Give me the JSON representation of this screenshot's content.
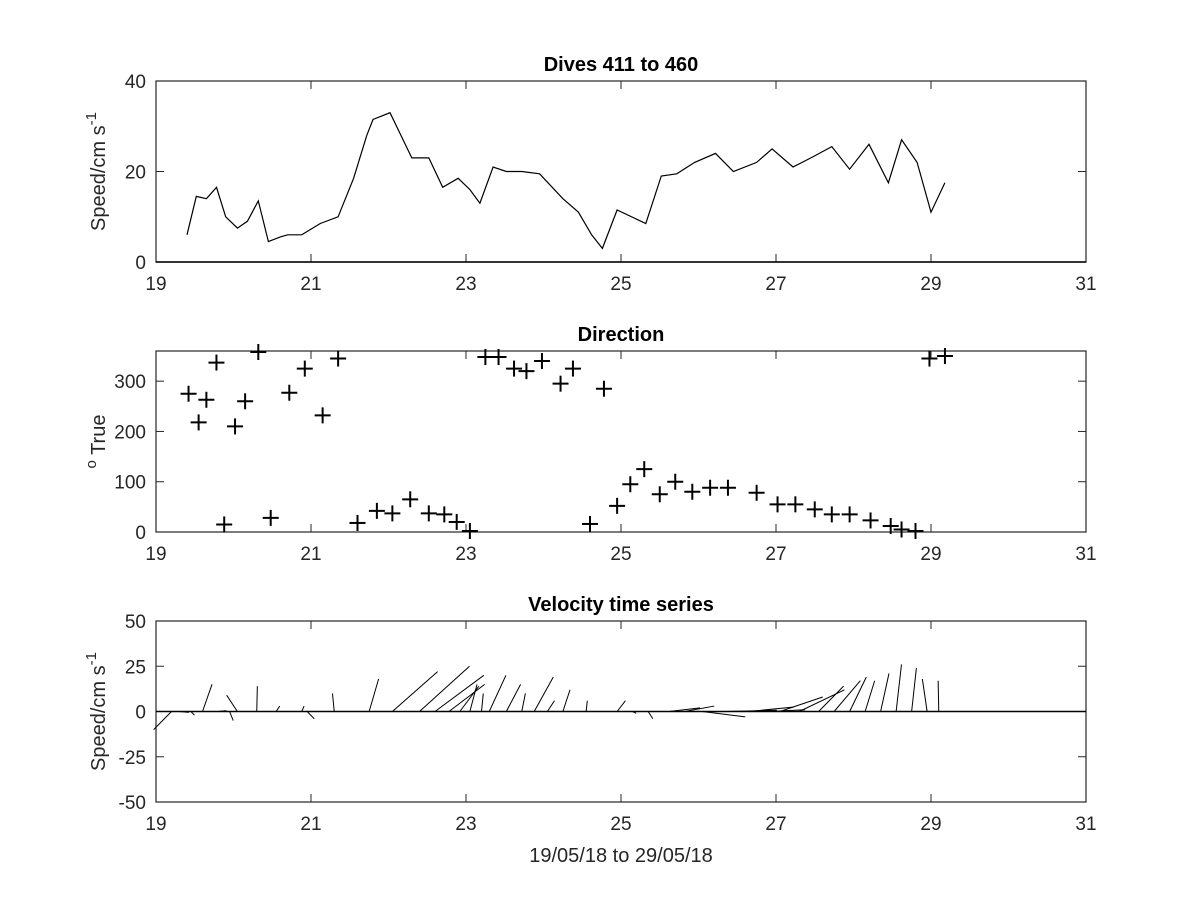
{
  "chart_data": [
    {
      "type": "line",
      "title": "Dives 411 to 460",
      "xlabel": "",
      "ylabel": "Speed/cm s",
      "ylabel_superscript": "-1",
      "xlim": [
        19,
        31
      ],
      "ylim": [
        0,
        40
      ],
      "xticks": [
        19,
        21,
        23,
        25,
        27,
        29,
        31
      ],
      "yticks": [
        0,
        20,
        40
      ],
      "grid": false,
      "series": [
        {
          "color": "#000000",
          "points": [
            [
              19.4,
              6
            ],
            [
              19.52,
              14.5
            ],
            [
              19.65,
              14
            ],
            [
              19.78,
              16.5
            ],
            [
              19.9,
              10
            ],
            [
              20.05,
              7.5
            ],
            [
              20.18,
              9
            ],
            [
              20.32,
              13.5
            ],
            [
              20.45,
              4.5
            ],
            [
              20.6,
              5.5
            ],
            [
              20.7,
              6
            ],
            [
              20.88,
              6
            ],
            [
              21.12,
              8.5
            ],
            [
              21.35,
              10
            ],
            [
              21.55,
              18.5
            ],
            [
              21.72,
              28
            ],
            [
              21.8,
              31.5
            ],
            [
              22.02,
              33
            ],
            [
              22.3,
              23
            ],
            [
              22.52,
              23
            ],
            [
              22.7,
              16.5
            ],
            [
              22.9,
              18.5
            ],
            [
              23.05,
              16
            ],
            [
              23.18,
              13
            ],
            [
              23.35,
              21
            ],
            [
              23.52,
              20
            ],
            [
              23.72,
              20
            ],
            [
              23.95,
              19.5
            ],
            [
              24.25,
              14
            ],
            [
              24.45,
              11
            ],
            [
              24.62,
              6
            ],
            [
              24.76,
              3
            ],
            [
              24.95,
              11.5
            ],
            [
              25.32,
              8.5
            ],
            [
              25.52,
              19
            ],
            [
              25.72,
              19.5
            ],
            [
              25.95,
              22
            ],
            [
              26.22,
              24
            ],
            [
              26.45,
              20
            ],
            [
              26.75,
              22
            ],
            [
              26.95,
              25
            ],
            [
              27.22,
              21
            ],
            [
              27.45,
              23
            ],
            [
              27.72,
              25.5
            ],
            [
              27.95,
              20.5
            ],
            [
              28.2,
              26
            ],
            [
              28.45,
              17.5
            ],
            [
              28.62,
              27
            ],
            [
              28.82,
              22
            ],
            [
              29.0,
              11
            ],
            [
              29.18,
              17.5
            ]
          ]
        }
      ]
    },
    {
      "type": "scatter",
      "title": "Direction",
      "xlabel": "",
      "ylabel": "True",
      "ylabel_prefix": "o",
      "xlim": [
        19,
        31
      ],
      "ylim": [
        0,
        360
      ],
      "xticks": [
        19,
        21,
        23,
        25,
        27,
        29,
        31
      ],
      "yticks": [
        0,
        100,
        200,
        300
      ],
      "grid": false,
      "marker": "+",
      "points": [
        [
          19.42,
          275
        ],
        [
          19.55,
          218
        ],
        [
          19.65,
          263
        ],
        [
          19.78,
          337
        ],
        [
          19.88,
          15
        ],
        [
          20.02,
          210
        ],
        [
          20.15,
          260
        ],
        [
          20.32,
          358
        ],
        [
          20.48,
          28
        ],
        [
          20.72,
          277
        ],
        [
          20.92,
          325
        ],
        [
          21.15,
          232
        ],
        [
          21.35,
          345
        ],
        [
          21.6,
          18
        ],
        [
          21.85,
          42
        ],
        [
          22.05,
          37
        ],
        [
          22.28,
          65
        ],
        [
          22.52,
          37
        ],
        [
          22.72,
          35
        ],
        [
          22.88,
          20
        ],
        [
          23.05,
          2
        ],
        [
          23.25,
          348
        ],
        [
          23.42,
          348
        ],
        [
          23.62,
          325
        ],
        [
          23.78,
          320
        ],
        [
          23.98,
          340
        ],
        [
          24.22,
          295
        ],
        [
          24.38,
          325
        ],
        [
          24.6,
          16
        ],
        [
          24.78,
          285
        ],
        [
          24.95,
          52
        ],
        [
          25.12,
          95
        ],
        [
          25.3,
          125
        ],
        [
          25.5,
          75
        ],
        [
          25.7,
          100
        ],
        [
          25.92,
          80
        ],
        [
          26.15,
          88
        ],
        [
          26.38,
          88
        ],
        [
          26.75,
          78
        ],
        [
          27.02,
          55
        ],
        [
          27.25,
          55
        ],
        [
          27.5,
          45
        ],
        [
          27.72,
          35
        ],
        [
          27.95,
          35
        ],
        [
          28.22,
          23
        ],
        [
          28.48,
          12
        ],
        [
          28.62,
          5
        ],
        [
          28.8,
          2
        ],
        [
          28.98,
          345
        ],
        [
          29.18,
          350
        ]
      ]
    },
    {
      "type": "line",
      "subtype": "vector-stick",
      "title": "Velocity time series",
      "xlabel": "19/05/18 to 29/05/18",
      "ylabel": "Speed/cm s",
      "ylabel_superscript": "-1",
      "xlim": [
        19,
        31
      ],
      "ylim": [
        -50,
        50
      ],
      "xticks": [
        19,
        21,
        23,
        25,
        27,
        29,
        31
      ],
      "yticks": [
        -50,
        -25,
        0,
        25,
        50
      ],
      "grid": false,
      "baseline": 0,
      "sticks": [
        [
          19.2,
          -1.5,
          -10
        ],
        [
          19.3,
          0.8,
          -0.5
        ],
        [
          19.45,
          0.3,
          -2
        ],
        [
          19.6,
          0.8,
          15
        ],
        [
          19.8,
          0.7,
          0.5
        ],
        [
          19.95,
          0.3,
          -5
        ],
        [
          20.05,
          -0.9,
          9
        ],
        [
          20.3,
          0.05,
          14
        ],
        [
          20.55,
          0.3,
          3
        ],
        [
          20.88,
          0.2,
          3
        ],
        [
          20.95,
          0.6,
          -4
        ],
        [
          21.3,
          -0.15,
          10
        ],
        [
          21.75,
          0.8,
          18
        ],
        [
          22.05,
          3.8,
          22
        ],
        [
          22.4,
          4.2,
          25
        ],
        [
          22.6,
          4.1,
          20
        ],
        [
          22.78,
          3,
          15
        ],
        [
          22.92,
          1.6,
          14
        ],
        [
          23.05,
          0.6,
          15
        ],
        [
          23.2,
          0.15,
          10
        ],
        [
          23.3,
          1.4,
          20
        ],
        [
          23.52,
          1.2,
          15
        ],
        [
          23.72,
          0.3,
          10
        ],
        [
          23.88,
          1.6,
          19
        ],
        [
          24.05,
          0.6,
          6
        ],
        [
          24.25,
          0.6,
          12
        ],
        [
          24.55,
          0.1,
          6
        ],
        [
          24.95,
          0.7,
          6
        ],
        [
          25.15,
          0.3,
          -1
        ],
        [
          25.35,
          0.4,
          -4
        ],
        [
          25.62,
          2.6,
          2
        ],
        [
          25.82,
          2.5,
          3
        ],
        [
          26.05,
          3.6,
          -3
        ],
        [
          26.35,
          4.3,
          0.7
        ],
        [
          26.65,
          3.8,
          2.5
        ],
        [
          26.9,
          3.1,
          1
        ],
        [
          27.05,
          3.6,
          8
        ],
        [
          27.3,
          3.8,
          12
        ],
        [
          27.55,
          2.1,
          14
        ],
        [
          27.75,
          2.2,
          17
        ],
        [
          27.95,
          1.4,
          19
        ],
        [
          28.15,
          0.8,
          17
        ],
        [
          28.35,
          0.7,
          21
        ],
        [
          28.55,
          0.45,
          26
        ],
        [
          28.75,
          0.4,
          24
        ],
        [
          28.95,
          -0.4,
          18
        ],
        [
          29.1,
          -0.05,
          17
        ]
      ]
    }
  ]
}
